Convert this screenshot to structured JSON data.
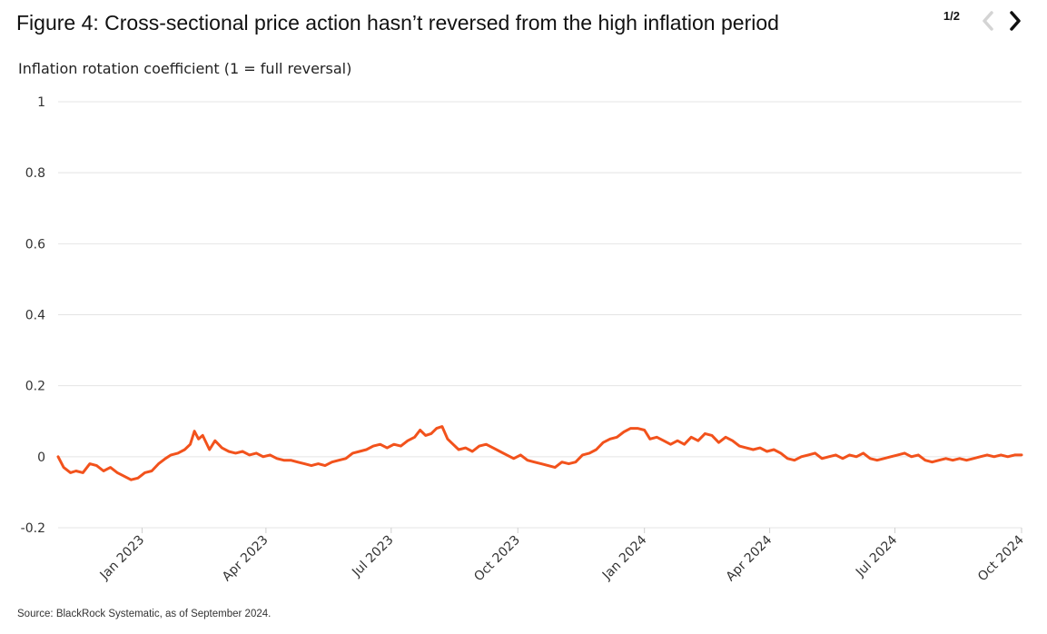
{
  "header": {
    "title": "Figure 4: Cross-sectional price action hasn’t reversed from the high inflation period",
    "page_indicator": "1/2"
  },
  "footer": {
    "source": "Source: BlackRock Systematic, as of September 2024."
  },
  "colors": {
    "line": "#f2521c",
    "grid": "#e4e4e4",
    "prev_disabled": "#d4d4d4",
    "next_active": "#111111"
  },
  "chart_data": {
    "type": "line",
    "title": "Figure 4: Cross-sectional price action hasn’t reversed from the high inflation period",
    "ylabel": "Inflation rotation coefficient (1 = full reversal)",
    "xlabel": "",
    "ylim": [
      -0.2,
      1
    ],
    "yticks": [
      -0.2,
      0,
      0.2,
      0.4,
      0.6,
      0.8,
      1
    ],
    "ytick_labels": [
      "-0.2",
      "0",
      "0.2",
      "0.4",
      "0.6",
      "0.8",
      "1"
    ],
    "xlim": [
      "2022-11-01",
      "2024-10-01"
    ],
    "xticks": [
      "2023-01-01",
      "2023-04-01",
      "2023-07-01",
      "2023-10-01",
      "2024-01-01",
      "2024-04-01",
      "2024-07-01",
      "2024-10-01"
    ],
    "xtick_labels": [
      "Jan 2023",
      "Apr 2023",
      "Jul 2023",
      "Oct 2023",
      "Jan 2024",
      "Apr 2024",
      "Jul 2024",
      "Oct 2024"
    ],
    "grid": true,
    "legend": "none",
    "series": [
      {
        "points": [
          [
            "2022-11-01",
            0.0
          ],
          [
            "2022-11-05",
            -0.03
          ],
          [
            "2022-11-10",
            -0.045
          ],
          [
            "2022-11-14",
            -0.04
          ],
          [
            "2022-11-19",
            -0.045
          ],
          [
            "2022-11-24",
            -0.02
          ],
          [
            "2022-11-29",
            -0.025
          ],
          [
            "2022-12-04",
            -0.04
          ],
          [
            "2022-12-09",
            -0.03
          ],
          [
            "2022-12-14",
            -0.045
          ],
          [
            "2022-12-19",
            -0.055
          ],
          [
            "2022-12-24",
            -0.065
          ],
          [
            "2022-12-29",
            -0.06
          ],
          [
            "2023-01-03",
            -0.045
          ],
          [
            "2023-01-08",
            -0.04
          ],
          [
            "2023-01-13",
            -0.02
          ],
          [
            "2023-01-18",
            -0.005
          ],
          [
            "2023-01-22",
            0.005
          ],
          [
            "2023-01-27",
            0.01
          ],
          [
            "2023-02-01",
            0.02
          ],
          [
            "2023-02-05",
            0.035
          ],
          [
            "2023-02-08",
            0.072
          ],
          [
            "2023-02-11",
            0.05
          ],
          [
            "2023-02-14",
            0.06
          ],
          [
            "2023-02-19",
            0.02
          ],
          [
            "2023-02-23",
            0.045
          ],
          [
            "2023-02-28",
            0.025
          ],
          [
            "2023-03-05",
            0.015
          ],
          [
            "2023-03-10",
            0.01
          ],
          [
            "2023-03-15",
            0.015
          ],
          [
            "2023-03-20",
            0.005
          ],
          [
            "2023-03-25",
            0.01
          ],
          [
            "2023-03-30",
            0.0
          ],
          [
            "2023-04-04",
            0.005
          ],
          [
            "2023-04-09",
            -0.005
          ],
          [
            "2023-04-14",
            -0.01
          ],
          [
            "2023-04-19",
            -0.01
          ],
          [
            "2023-04-24",
            -0.015
          ],
          [
            "2023-04-29",
            -0.02
          ],
          [
            "2023-05-04",
            -0.025
          ],
          [
            "2023-05-09",
            -0.02
          ],
          [
            "2023-05-14",
            -0.025
          ],
          [
            "2023-05-19",
            -0.015
          ],
          [
            "2023-05-24",
            -0.01
          ],
          [
            "2023-05-29",
            -0.005
          ],
          [
            "2023-06-03",
            0.01
          ],
          [
            "2023-06-08",
            0.015
          ],
          [
            "2023-06-13",
            0.02
          ],
          [
            "2023-06-18",
            0.03
          ],
          [
            "2023-06-23",
            0.035
          ],
          [
            "2023-06-28",
            0.025
          ],
          [
            "2023-07-03",
            0.035
          ],
          [
            "2023-07-08",
            0.03
          ],
          [
            "2023-07-13",
            0.045
          ],
          [
            "2023-07-18",
            0.055
          ],
          [
            "2023-07-22",
            0.075
          ],
          [
            "2023-07-26",
            0.06
          ],
          [
            "2023-07-30",
            0.065
          ],
          [
            "2023-08-03",
            0.08
          ],
          [
            "2023-08-07",
            0.085
          ],
          [
            "2023-08-11",
            0.05
          ],
          [
            "2023-08-15",
            0.035
          ],
          [
            "2023-08-19",
            0.02
          ],
          [
            "2023-08-24",
            0.025
          ],
          [
            "2023-08-29",
            0.015
          ],
          [
            "2023-09-03",
            0.03
          ],
          [
            "2023-09-08",
            0.035
          ],
          [
            "2023-09-13",
            0.025
          ],
          [
            "2023-09-18",
            0.015
          ],
          [
            "2023-09-23",
            0.005
          ],
          [
            "2023-09-28",
            -0.005
          ],
          [
            "2023-10-03",
            0.005
          ],
          [
            "2023-10-08",
            -0.01
          ],
          [
            "2023-10-13",
            -0.015
          ],
          [
            "2023-10-18",
            -0.02
          ],
          [
            "2023-10-23",
            -0.025
          ],
          [
            "2023-10-28",
            -0.03
          ],
          [
            "2023-11-02",
            -0.015
          ],
          [
            "2023-11-07",
            -0.02
          ],
          [
            "2023-11-12",
            -0.015
          ],
          [
            "2023-11-17",
            0.005
          ],
          [
            "2023-11-22",
            0.01
          ],
          [
            "2023-11-27",
            0.02
          ],
          [
            "2023-12-02",
            0.04
          ],
          [
            "2023-12-07",
            0.05
          ],
          [
            "2023-12-12",
            0.055
          ],
          [
            "2023-12-17",
            0.07
          ],
          [
            "2023-12-22",
            0.08
          ],
          [
            "2023-12-27",
            0.08
          ],
          [
            "2024-01-01",
            0.075
          ],
          [
            "2024-01-05",
            0.05
          ],
          [
            "2024-01-10",
            0.055
          ],
          [
            "2024-01-15",
            0.045
          ],
          [
            "2024-01-20",
            0.035
          ],
          [
            "2024-01-25",
            0.045
          ],
          [
            "2024-01-30",
            0.035
          ],
          [
            "2024-02-04",
            0.055
          ],
          [
            "2024-02-09",
            0.045
          ],
          [
            "2024-02-14",
            0.065
          ],
          [
            "2024-02-19",
            0.06
          ],
          [
            "2024-02-24",
            0.04
          ],
          [
            "2024-02-29",
            0.055
          ],
          [
            "2024-03-05",
            0.045
          ],
          [
            "2024-03-10",
            0.03
          ],
          [
            "2024-03-15",
            0.025
          ],
          [
            "2024-03-20",
            0.02
          ],
          [
            "2024-03-25",
            0.025
          ],
          [
            "2024-03-30",
            0.015
          ],
          [
            "2024-04-04",
            0.02
          ],
          [
            "2024-04-09",
            0.01
          ],
          [
            "2024-04-14",
            -0.005
          ],
          [
            "2024-04-19",
            -0.01
          ],
          [
            "2024-04-24",
            0.0
          ],
          [
            "2024-04-29",
            0.005
          ],
          [
            "2024-05-04",
            0.01
          ],
          [
            "2024-05-09",
            -0.005
          ],
          [
            "2024-05-14",
            0.0
          ],
          [
            "2024-05-19",
            0.005
          ],
          [
            "2024-05-24",
            -0.005
          ],
          [
            "2024-05-29",
            0.005
          ],
          [
            "2024-06-03",
            0.0
          ],
          [
            "2024-06-08",
            0.01
          ],
          [
            "2024-06-13",
            -0.005
          ],
          [
            "2024-06-18",
            -0.01
          ],
          [
            "2024-06-23",
            -0.005
          ],
          [
            "2024-06-28",
            0.0
          ],
          [
            "2024-07-03",
            0.005
          ],
          [
            "2024-07-08",
            0.01
          ],
          [
            "2024-07-13",
            0.0
          ],
          [
            "2024-07-18",
            0.005
          ],
          [
            "2024-07-23",
            -0.01
          ],
          [
            "2024-07-28",
            -0.015
          ],
          [
            "2024-08-02",
            -0.01
          ],
          [
            "2024-08-07",
            -0.005
          ],
          [
            "2024-08-12",
            -0.01
          ],
          [
            "2024-08-17",
            -0.005
          ],
          [
            "2024-08-22",
            -0.01
          ],
          [
            "2024-08-27",
            -0.005
          ],
          [
            "2024-09-01",
            0.0
          ],
          [
            "2024-09-06",
            0.005
          ],
          [
            "2024-09-11",
            0.0
          ],
          [
            "2024-09-16",
            0.005
          ],
          [
            "2024-09-21",
            0.0
          ],
          [
            "2024-09-26",
            0.005
          ],
          [
            "2024-10-01",
            0.005
          ]
        ]
      }
    ]
  }
}
